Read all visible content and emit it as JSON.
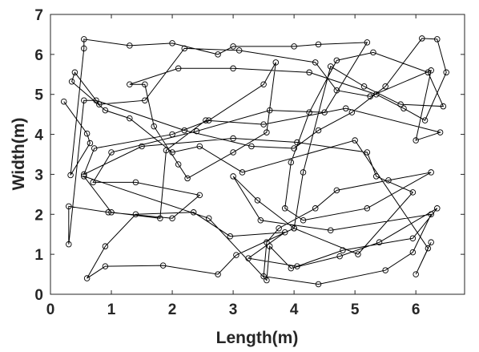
{
  "chart_data": {
    "type": "line",
    "xlabel": "Length(m)",
    "ylabel": "Width(m)",
    "color": "#000000",
    "marker": "circle",
    "xlim": [
      0,
      6.8
    ],
    "ylim": [
      0,
      7
    ],
    "xticks": [
      0,
      1,
      2,
      3,
      4,
      5,
      6
    ],
    "yticks": [
      0,
      1,
      2,
      3,
      4,
      5,
      6,
      7
    ],
    "grid": false,
    "x": [
      0.22,
      0.6,
      0.65,
      0.33,
      0.55,
      0.55,
      1.3,
      2.0,
      2.75,
      3.0,
      4.0,
      4.4,
      5.2,
      4.5,
      3.6,
      2.4,
      1.0,
      0.7,
      1.4,
      2.45,
      2.0,
      0.95,
      0.3,
      0.3,
      0.55,
      0.75,
      2.2,
      3.3,
      4.0,
      4.4,
      4.95,
      5.5,
      6.1,
      6.35,
      6.5,
      6.15,
      5.8,
      5.35,
      4.25,
      3.0,
      2.1,
      1.3,
      1.55,
      1.7,
      2.1,
      2.25,
      3.0,
      3.55,
      3.7,
      3.5,
      2.6,
      2.0,
      0.72,
      0.55,
      1.5,
      3.0,
      4.05,
      5.2,
      5.35,
      5.95,
      5.05,
      4.0,
      3.4,
      3.0,
      3.45,
      4.6,
      6.25,
      5.95,
      5.5,
      4.4,
      3.5,
      3.55,
      3.75,
      4.35,
      4.7,
      5.55,
      6.25,
      5.2,
      4.15,
      3.85,
      3.95,
      4.25,
      4.7,
      5.3,
      6.2,
      6.45,
      5.75,
      5.15,
      4.6,
      4.15,
      4.0,
      3.05,
      2.75,
      1.85,
      0.9,
      0.6,
      0.9,
      1.4,
      2.35,
      2.95,
      3.85,
      3.25,
      4.05,
      4.8,
      5.95,
      6.35,
      5.4,
      4.75,
      3.95,
      3.6,
      3.55,
      2.6,
      0.55,
      1.0,
      1.8,
      1.9,
      2.55,
      3.5,
      4.85,
      6.4,
      6.0,
      6.25,
      5.25,
      4.7,
      4.35,
      3.1,
      2.2,
      1.55,
      0.8,
      0.4,
      0.35,
      0.9,
      1.3,
      2.0,
      2.45,
      3.15,
      5.0,
      6.2,
      6.0,
      6.25
    ],
    "values": [
      4.82,
      4.02,
      3.78,
      2.98,
      6.15,
      6.38,
      6.22,
      6.28,
      6.0,
      6.2,
      6.2,
      6.25,
      6.3,
      4.55,
      4.6,
      4.08,
      3.55,
      2.8,
      2.8,
      2.48,
      1.9,
      2.05,
      2.2,
      1.25,
      4.85,
      4.85,
      4.1,
      3.7,
      3.65,
      4.1,
      4.55,
      5.2,
      6.4,
      6.38,
      5.55,
      4.35,
      4.65,
      5.0,
      5.55,
      5.65,
      5.65,
      5.25,
      5.25,
      4.2,
      3.25,
      2.9,
      3.55,
      4.05,
      5.8,
      5.25,
      4.35,
      4.0,
      3.65,
      3.0,
      3.7,
      3.9,
      3.8,
      3.55,
      2.95,
      2.55,
      1.0,
      1.65,
      2.35,
      2.95,
      1.85,
      1.6,
      2.0,
      1.05,
      0.6,
      0.25,
      0.45,
      1.3,
      1.65,
      2.15,
      2.6,
      2.85,
      3.05,
      2.15,
      1.85,
      2.15,
      3.3,
      4.55,
      5.85,
      6.05,
      5.55,
      4.7,
      4.75,
      5.2,
      5.7,
      3.05,
      1.65,
      0.98,
      0.5,
      0.72,
      0.7,
      0.4,
      1.2,
      2.0,
      2.05,
      1.45,
      1.55,
      0.9,
      0.7,
      1.1,
      1.4,
      2.15,
      1.3,
      0.95,
      0.65,
      1.2,
      0.35,
      1.9,
      2.95,
      2.05,
      1.9,
      3.6,
      4.35,
      4.25,
      4.65,
      4.05,
      3.85,
      5.6,
      4.95,
      5.1,
      5.8,
      6.1,
      6.15,
      4.85,
      4.75,
      5.55,
      5.32,
      4.6,
      4.4,
      3.55,
      3.7,
      3.05,
      3.85,
      1.15,
      0.5,
      1.3
    ]
  }
}
